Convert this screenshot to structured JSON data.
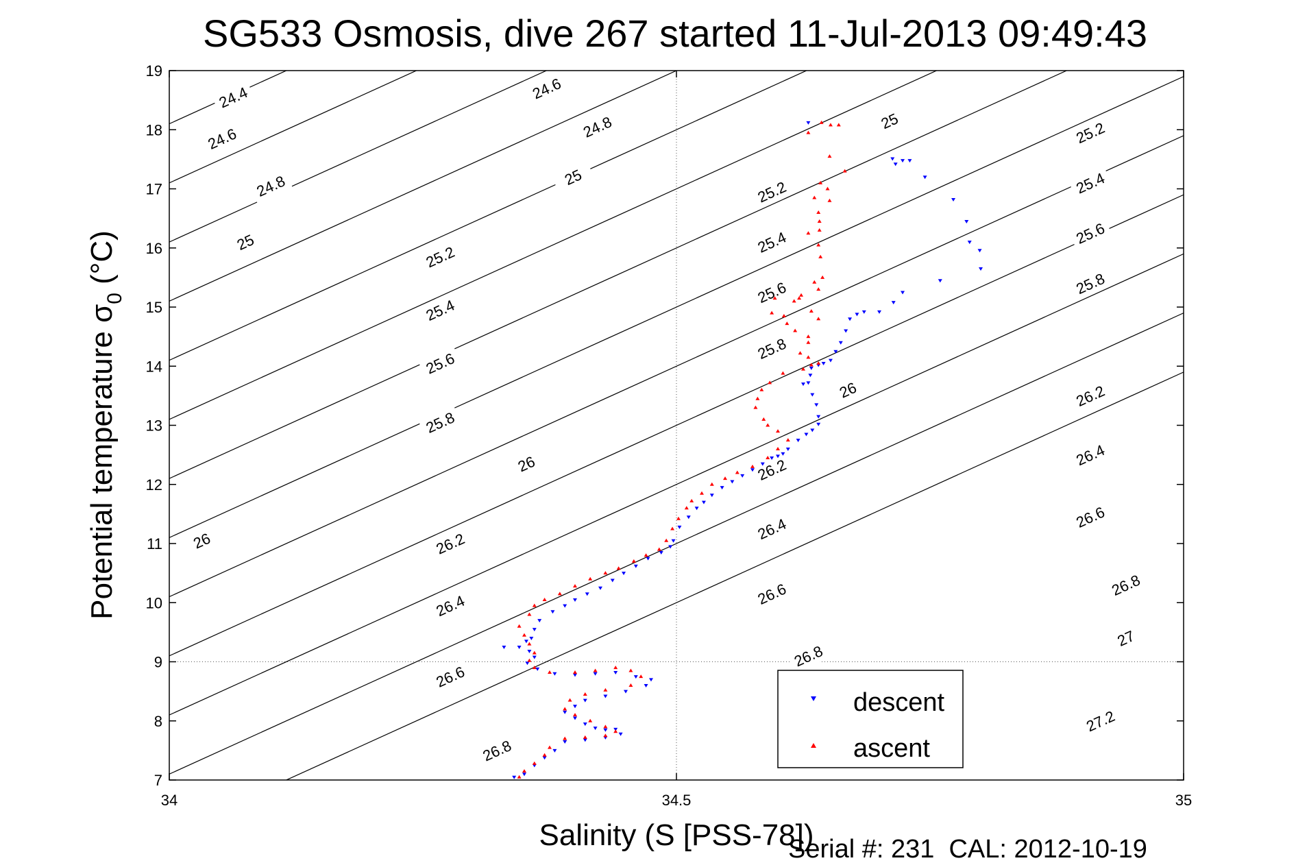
{
  "chart_data": {
    "type": "scatter",
    "title": "SG533 Osmosis, dive 267 started 11-Jul-2013 09:49:43",
    "xlabel": "Salinity (S [PSS-78])",
    "ylabel_main": "Potential temperature σ",
    "ylabel_sub": "0",
    "ylabel_unit": " (°C)",
    "xlim": [
      34,
      35
    ],
    "ylim": [
      7,
      19
    ],
    "xticks": [
      34,
      34.5,
      35
    ],
    "xtick_labels": [
      "34",
      "34.5",
      "35"
    ],
    "yticks": [
      7,
      8,
      9,
      10,
      11,
      12,
      13,
      14,
      15,
      16,
      17,
      18,
      19
    ],
    "ytick_labels": [
      "7",
      "8",
      "9",
      "10",
      "11",
      "12",
      "13",
      "14",
      "15",
      "16",
      "17",
      "18",
      "19"
    ],
    "grid": "dotted lines at x=34.5 and y=9",
    "legend_placement": "bottom-right",
    "footer": "Serial #: 231  CAL: 2012-10-19",
    "density_contours": {
      "unit": "sigma",
      "lines": [
        {
          "value": 24.4,
          "label": "24.4"
        },
        {
          "value": 24.6,
          "label": "24.6"
        },
        {
          "value": 24.8,
          "label": "24.8"
        },
        {
          "value": 25.0,
          "label": "25"
        },
        {
          "value": 25.2,
          "label": "25.2"
        },
        {
          "value": 25.4,
          "label": "25.4"
        },
        {
          "value": 25.6,
          "label": "25.6"
        },
        {
          "value": 25.8,
          "label": "25.8"
        },
        {
          "value": 26.0,
          "label": "26"
        },
        {
          "value": 26.2,
          "label": "26.2"
        },
        {
          "value": 26.4,
          "label": "26.4"
        },
        {
          "value": 26.6,
          "label": "26.6"
        },
        {
          "value": 26.8,
          "label": "26.8"
        },
        {
          "value": 27.0,
          "label": "27"
        },
        {
          "value": 27.2,
          "label": "27.2"
        }
      ],
      "label_positions": [
        {
          "label": "24.4",
          "s": 34.063,
          "t": 18.55
        },
        {
          "label": "24.6",
          "s": 34.372,
          "t": 18.7
        },
        {
          "label": "24.6",
          "s": 34.052,
          "t": 17.85
        },
        {
          "label": "24.8",
          "s": 34.422,
          "t": 18.05
        },
        {
          "label": "24.8",
          "s": 34.1,
          "t": 17.05
        },
        {
          "label": "25",
          "s": 34.71,
          "t": 18.15
        },
        {
          "label": "25",
          "s": 34.398,
          "t": 17.2
        },
        {
          "label": "25",
          "s": 34.075,
          "t": 16.1
        },
        {
          "label": "25.2",
          "s": 34.908,
          "t": 17.95
        },
        {
          "label": "25.2",
          "s": 34.594,
          "t": 16.95
        },
        {
          "label": "25.2",
          "s": 34.267,
          "t": 15.85
        },
        {
          "label": "25.4",
          "s": 34.908,
          "t": 17.1
        },
        {
          "label": "25.4",
          "s": 34.594,
          "t": 16.1
        },
        {
          "label": "25.4",
          "s": 34.267,
          "t": 14.95
        },
        {
          "label": "25.6",
          "s": 34.908,
          "t": 16.25
        },
        {
          "label": "25.6",
          "s": 34.594,
          "t": 15.25
        },
        {
          "label": "25.6",
          "s": 34.267,
          "t": 14.05
        },
        {
          "label": "25.8",
          "s": 34.908,
          "t": 15.4
        },
        {
          "label": "25.8",
          "s": 34.594,
          "t": 14.3
        },
        {
          "label": "25.8",
          "s": 34.267,
          "t": 13.05
        },
        {
          "label": "26",
          "s": 34.669,
          "t": 13.6
        },
        {
          "label": "26",
          "s": 34.352,
          "t": 12.35
        },
        {
          "label": "26",
          "s": 34.032,
          "t": 11.05
        },
        {
          "label": "26.2",
          "s": 34.908,
          "t": 13.5
        },
        {
          "label": "26.2",
          "s": 34.594,
          "t": 12.25
        },
        {
          "label": "26.2",
          "s": 34.277,
          "t": 11.0
        },
        {
          "label": "26.4",
          "s": 34.908,
          "t": 12.5
        },
        {
          "label": "26.4",
          "s": 34.594,
          "t": 11.25
        },
        {
          "label": "26.4",
          "s": 34.277,
          "t": 9.95
        },
        {
          "label": "26.6",
          "s": 34.908,
          "t": 11.45
        },
        {
          "label": "26.6",
          "s": 34.594,
          "t": 10.15
        },
        {
          "label": "26.6",
          "s": 34.277,
          "t": 8.75
        },
        {
          "label": "26.8",
          "s": 34.943,
          "t": 10.3
        },
        {
          "label": "26.8",
          "s": 34.63,
          "t": 9.1
        },
        {
          "label": "26.8",
          "s": 34.323,
          "t": 7.5
        },
        {
          "label": "27",
          "s": 34.943,
          "t": 9.4
        },
        {
          "label": "27.2",
          "s": 34.918,
          "t": 8.0
        }
      ]
    },
    "series": [
      {
        "name": "descent",
        "color": "#0000ff",
        "marker": "triangle-down",
        "points": [
          [
            34.63,
            18.12
          ],
          [
            34.713,
            17.51
          ],
          [
            34.723,
            17.48
          ],
          [
            34.73,
            17.48
          ],
          [
            34.716,
            17.42
          ],
          [
            34.745,
            17.2
          ],
          [
            34.773,
            16.82
          ],
          [
            34.786,
            16.45
          ],
          [
            34.789,
            16.1
          ],
          [
            34.799,
            15.96
          ],
          [
            34.8,
            15.65
          ],
          [
            34.76,
            15.45
          ],
          [
            34.723,
            15.25
          ],
          [
            34.714,
            15.08
          ],
          [
            34.7,
            14.92
          ],
          [
            34.685,
            14.92
          ],
          [
            34.678,
            14.88
          ],
          [
            34.671,
            14.8
          ],
          [
            34.667,
            14.6
          ],
          [
            34.662,
            14.4
          ],
          [
            34.657,
            14.25
          ],
          [
            34.652,
            14.1
          ],
          [
            34.645,
            14.05
          ],
          [
            34.64,
            14.02
          ],
          [
            34.633,
            13.97
          ],
          [
            34.632,
            13.85
          ],
          [
            34.63,
            13.72
          ],
          [
            34.625,
            13.7
          ],
          [
            34.634,
            13.52
          ],
          [
            34.638,
            13.35
          ],
          [
            34.64,
            13.15
          ],
          [
            34.64,
            13.02
          ],
          [
            34.634,
            12.92
          ],
          [
            34.628,
            12.85
          ],
          [
            34.62,
            12.75
          ],
          [
            34.61,
            12.6
          ],
          [
            34.605,
            12.52
          ],
          [
            34.6,
            12.48
          ],
          [
            34.594,
            12.45
          ],
          [
            34.585,
            12.35
          ],
          [
            34.575,
            12.25
          ],
          [
            34.565,
            12.15
          ],
          [
            34.555,
            12.05
          ],
          [
            34.545,
            11.95
          ],
          [
            34.535,
            11.82
          ],
          [
            34.527,
            11.7
          ],
          [
            34.52,
            11.6
          ],
          [
            34.512,
            11.45
          ],
          [
            34.503,
            11.28
          ],
          [
            34.497,
            11.05
          ],
          [
            34.494,
            10.95
          ],
          [
            34.485,
            10.85
          ],
          [
            34.472,
            10.75
          ],
          [
            34.46,
            10.62
          ],
          [
            34.448,
            10.5
          ],
          [
            34.437,
            10.38
          ],
          [
            34.425,
            10.25
          ],
          [
            34.412,
            10.15
          ],
          [
            34.4,
            10.05
          ],
          [
            34.39,
            9.95
          ],
          [
            34.378,
            9.85
          ],
          [
            34.365,
            9.7
          ],
          [
            34.36,
            9.55
          ],
          [
            34.357,
            9.4
          ],
          [
            34.352,
            9.35
          ],
          [
            34.33,
            9.25
          ],
          [
            34.345,
            9.25
          ],
          [
            34.355,
            9.18
          ],
          [
            34.36,
            9.08
          ],
          [
            34.353,
            8.98
          ],
          [
            34.363,
            8.88
          ],
          [
            34.38,
            8.8
          ],
          [
            34.4,
            8.78
          ],
          [
            34.42,
            8.8
          ],
          [
            34.44,
            8.82
          ],
          [
            34.46,
            8.75
          ],
          [
            34.475,
            8.7
          ],
          [
            34.47,
            8.6
          ],
          [
            34.45,
            8.5
          ],
          [
            34.43,
            8.42
          ],
          [
            34.41,
            8.35
          ],
          [
            34.4,
            8.25
          ],
          [
            34.39,
            8.15
          ],
          [
            34.4,
            8.05
          ],
          [
            34.41,
            7.95
          ],
          [
            34.42,
            7.88
          ],
          [
            34.43,
            7.85
          ],
          [
            34.44,
            7.86
          ],
          [
            34.445,
            7.78
          ],
          [
            34.43,
            7.72
          ],
          [
            34.41,
            7.68
          ],
          [
            34.39,
            7.65
          ],
          [
            34.38,
            7.5
          ],
          [
            34.37,
            7.38
          ],
          [
            34.36,
            7.25
          ],
          [
            34.35,
            7.1
          ],
          [
            34.34,
            7.05
          ]
        ]
      },
      {
        "name": "ascent",
        "color": "#ff0000",
        "marker": "triangle-up",
        "points": [
          [
            34.643,
            18.12
          ],
          [
            34.652,
            18.08
          ],
          [
            34.66,
            18.08
          ],
          [
            34.63,
            17.95
          ],
          [
            34.651,
            17.55
          ],
          [
            34.666,
            17.3
          ],
          [
            34.642,
            17.1
          ],
          [
            34.649,
            17.0
          ],
          [
            34.636,
            16.85
          ],
          [
            34.651,
            16.8
          ],
          [
            34.64,
            16.6
          ],
          [
            34.641,
            16.45
          ],
          [
            34.641,
            16.3
          ],
          [
            34.63,
            16.25
          ],
          [
            34.64,
            16.05
          ],
          [
            34.642,
            15.85
          ],
          [
            34.644,
            15.5
          ],
          [
            34.636,
            15.42
          ],
          [
            34.64,
            15.3
          ],
          [
            34.623,
            15.2
          ],
          [
            34.621,
            15.15
          ],
          [
            34.616,
            15.1
          ],
          [
            34.597,
            15.15
          ],
          [
            34.594,
            14.9
          ],
          [
            34.606,
            14.85
          ],
          [
            34.633,
            14.93
          ],
          [
            34.64,
            14.8
          ],
          [
            34.609,
            14.72
          ],
          [
            34.617,
            14.6
          ],
          [
            34.63,
            14.5
          ],
          [
            34.63,
            14.4
          ],
          [
            34.622,
            14.22
          ],
          [
            34.63,
            14.15
          ],
          [
            34.64,
            14.05
          ],
          [
            34.633,
            14.02
          ],
          [
            34.625,
            13.95
          ],
          [
            34.605,
            13.88
          ],
          [
            34.592,
            13.72
          ],
          [
            34.584,
            13.6
          ],
          [
            34.58,
            13.45
          ],
          [
            34.578,
            13.3
          ],
          [
            34.586,
            13.1
          ],
          [
            34.59,
            13.0
          ],
          [
            34.6,
            12.9
          ],
          [
            34.61,
            12.75
          ],
          [
            34.6,
            12.6
          ],
          [
            34.59,
            12.45
          ],
          [
            34.575,
            12.3
          ],
          [
            34.56,
            12.2
          ],
          [
            34.548,
            12.1
          ],
          [
            34.535,
            12.0
          ],
          [
            34.525,
            11.85
          ],
          [
            34.515,
            11.72
          ],
          [
            34.51,
            11.6
          ],
          [
            34.502,
            11.42
          ],
          [
            34.496,
            11.25
          ],
          [
            34.49,
            11.05
          ],
          [
            34.483,
            10.9
          ],
          [
            34.47,
            10.8
          ],
          [
            34.458,
            10.7
          ],
          [
            34.443,
            10.58
          ],
          [
            34.43,
            10.5
          ],
          [
            34.415,
            10.4
          ],
          [
            34.4,
            10.28
          ],
          [
            34.385,
            10.15
          ],
          [
            34.37,
            10.05
          ],
          [
            34.36,
            9.95
          ],
          [
            34.355,
            9.8
          ],
          [
            34.345,
            9.6
          ],
          [
            34.35,
            9.45
          ],
          [
            34.355,
            9.3
          ],
          [
            34.36,
            9.15
          ],
          [
            34.355,
            9.02
          ],
          [
            34.36,
            8.9
          ],
          [
            34.375,
            8.82
          ],
          [
            34.4,
            8.82
          ],
          [
            34.42,
            8.85
          ],
          [
            34.44,
            8.9
          ],
          [
            34.455,
            8.85
          ],
          [
            34.465,
            8.75
          ],
          [
            34.455,
            8.6
          ],
          [
            34.43,
            8.52
          ],
          [
            34.41,
            8.45
          ],
          [
            34.395,
            8.35
          ],
          [
            34.39,
            8.2
          ],
          [
            34.4,
            8.1
          ],
          [
            34.415,
            8.0
          ],
          [
            34.43,
            7.9
          ],
          [
            34.44,
            7.82
          ],
          [
            34.43,
            7.75
          ],
          [
            34.41,
            7.72
          ],
          [
            34.39,
            7.7
          ],
          [
            34.375,
            7.55
          ],
          [
            34.37,
            7.42
          ],
          [
            34.36,
            7.28
          ],
          [
            34.35,
            7.15
          ],
          [
            34.345,
            7.05
          ]
        ]
      }
    ]
  }
}
